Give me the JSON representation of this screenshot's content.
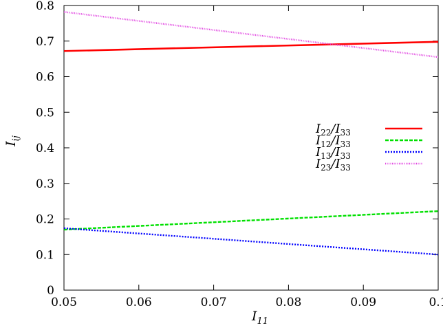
{
  "chart_data": {
    "type": "line",
    "xlabel": {
      "base": "I",
      "sub": "11"
    },
    "ylabel": {
      "base": "I",
      "sub": "ij"
    },
    "xlim": [
      0.05,
      0.1
    ],
    "ylim": [
      0,
      0.8
    ],
    "xticks": [
      {
        "value": 0.05,
        "label": "0.05"
      },
      {
        "value": 0.06,
        "label": "0.06"
      },
      {
        "value": 0.07,
        "label": "0.07"
      },
      {
        "value": 0.08,
        "label": "0.08"
      },
      {
        "value": 0.09,
        "label": "0.09"
      },
      {
        "value": 0.1,
        "label": "0.1"
      }
    ],
    "yticks": [
      {
        "value": 0,
        "label": "0"
      },
      {
        "value": 0.1,
        "label": "0.1"
      },
      {
        "value": 0.2,
        "label": "0.2"
      },
      {
        "value": 0.3,
        "label": "0.3"
      },
      {
        "value": 0.4,
        "label": "0.4"
      },
      {
        "value": 0.5,
        "label": "0.5"
      },
      {
        "value": 0.6,
        "label": "0.6"
      },
      {
        "value": 0.7,
        "label": "0.7"
      },
      {
        "value": 0.8,
        "label": "0.8"
      }
    ],
    "grid": false,
    "legend_position": "middle-right",
    "series": [
      {
        "name": "I22/I33",
        "name_parts": {
          "a": "22",
          "b": "33"
        },
        "color": "#ff0000",
        "style": "solid",
        "x": [
          0.05,
          0.1
        ],
        "y": [
          0.672,
          0.698
        ]
      },
      {
        "name": "I12/I33",
        "name_parts": {
          "a": "12",
          "b": "33"
        },
        "color": "#00e000",
        "style": "dashed",
        "x": [
          0.05,
          0.1
        ],
        "y": [
          0.17,
          0.222
        ]
      },
      {
        "name": "I13/I33",
        "name_parts": {
          "a": "13",
          "b": "33"
        },
        "color": "#0000ff",
        "style": "dotted",
        "x": [
          0.05,
          0.1
        ],
        "y": [
          0.174,
          0.1
        ]
      },
      {
        "name": "I23/I33",
        "name_parts": {
          "a": "23",
          "b": "33"
        },
        "color": "#e040e0",
        "style": "fine-dotted",
        "x": [
          0.05,
          0.1
        ],
        "y": [
          0.782,
          0.655
        ]
      }
    ]
  }
}
